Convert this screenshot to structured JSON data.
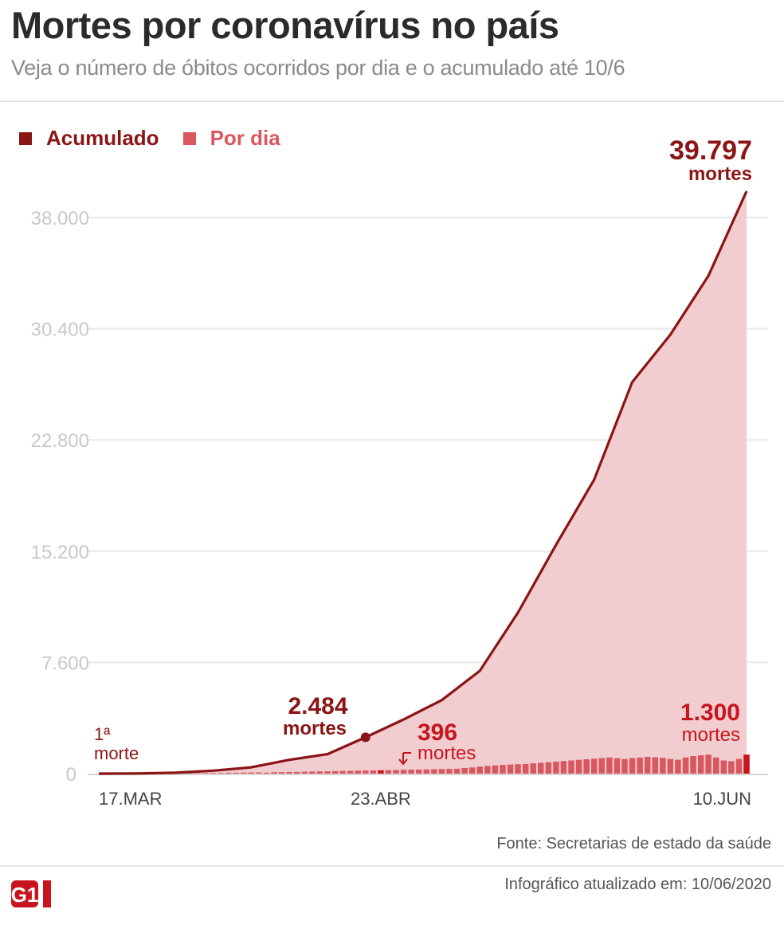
{
  "header": {
    "title": "Mortes por coronavírus no país",
    "subtitle": "Veja o número de óbitos ocorridos por dia e o acumulado até 10/6"
  },
  "colors": {
    "dark_red": "#8b1414",
    "light_red": "#d9575f",
    "area": "#f1cdcf",
    "grid": "#e8e8e8",
    "tick": "#c8c8c8",
    "label_red": "#c8141e"
  },
  "footer": {
    "source": "Fonte: Secretarias de estado da saúde",
    "updated": "Infográfico atualizado em: 10/06/2020",
    "logo": "G1"
  },
  "chart_data": {
    "type": "area",
    "title": "Mortes por coronavírus no país",
    "legend": [
      "Acumulado",
      "Por dia"
    ],
    "ylim": [
      0,
      39797
    ],
    "yticks": [
      0,
      7600,
      15200,
      22800,
      30400,
      38000
    ],
    "ytick_labels": [
      "0",
      "7.600",
      "15.200",
      "22.800",
      "30.400",
      "38.000"
    ],
    "xtick_labels": [
      {
        "day": 0,
        "label": "17.MAR"
      },
      {
        "day": 37,
        "label": "23.ABR"
      },
      {
        "day": 85,
        "label": "10.JUN"
      }
    ],
    "cumulative_knots": [
      [
        0,
        1
      ],
      [
        5,
        11
      ],
      [
        10,
        59
      ],
      [
        15,
        201
      ],
      [
        20,
        432
      ],
      [
        25,
        941
      ],
      [
        30,
        1328
      ],
      [
        35,
        2484
      ],
      [
        40,
        3704
      ],
      [
        45,
        5017
      ],
      [
        50,
        7025
      ],
      [
        55,
        11000
      ],
      [
        60,
        15633
      ],
      [
        65,
        20082
      ],
      [
        70,
        26754
      ],
      [
        75,
        30000
      ],
      [
        80,
        34021
      ],
      [
        85,
        39797
      ]
    ],
    "daily": [
      1,
      0,
      3,
      2,
      4,
      4,
      7,
      12,
      20,
      20,
      18,
      25,
      32,
      35,
      40,
      45,
      40,
      60,
      62,
      70,
      80,
      75,
      68,
      92,
      105,
      110,
      120,
      130,
      140,
      150,
      160,
      170,
      180,
      190,
      200,
      210,
      220,
      230,
      240,
      250,
      260,
      270,
      280,
      290,
      300,
      310,
      320,
      330,
      380,
      420,
      480,
      520,
      560,
      600,
      620,
      640,
      660,
      700,
      740,
      780,
      820,
      860,
      900,
      940,
      980,
      1020,
      1060,
      1100,
      1050,
      1000,
      1060,
      1100,
      1150,
      1120,
      1080,
      1000,
      950,
      1100,
      1200,
      1250,
      1300,
      1100,
      900,
      850,
      1000,
      1300
    ],
    "annotations": [
      {
        "value": "1ª",
        "line2": "morte"
      },
      {
        "value": "2.484",
        "line2": "mortes"
      },
      {
        "value": "396",
        "line2": "mortes"
      },
      {
        "value": "1.300",
        "line2": "mortes"
      },
      {
        "value": "39.797",
        "line2": "mortes"
      }
    ]
  }
}
